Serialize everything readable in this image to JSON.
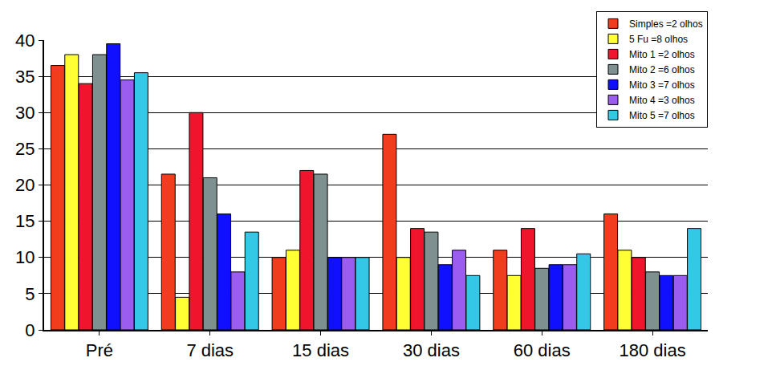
{
  "chart_data": {
    "type": "bar",
    "categories": [
      "Pré",
      "7 dias",
      "15 dias",
      "30 dias",
      "60 dias",
      "180 dias"
    ],
    "series": [
      {
        "name": "Simples =2 olhos",
        "color": "#F23C1E",
        "values": [
          36.5,
          21.5,
          10,
          27,
          11,
          16
        ]
      },
      {
        "name": "5 Fu =8 olhos",
        "color": "#FFFF33",
        "values": [
          38,
          4.5,
          11,
          10,
          7.5,
          11
        ]
      },
      {
        "name": "Mito 1 =2 olhos",
        "color": "#F0142D",
        "values": [
          34,
          30,
          22,
          14,
          14,
          10
        ]
      },
      {
        "name": "Mito 2 =6 olhos",
        "color": "#7F9090",
        "values": [
          38,
          21,
          21.5,
          13.5,
          8.5,
          8
        ]
      },
      {
        "name": "Mito 3 =7 olhos",
        "color": "#1010FF",
        "values": [
          39.5,
          16,
          10,
          9,
          9,
          7.5
        ]
      },
      {
        "name": "Mito 4 =3 olhos",
        "color": "#9B5CF0",
        "values": [
          34.5,
          8,
          10,
          11,
          9,
          7.5
        ]
      },
      {
        "name": "Mito 5 =7 olhos",
        "color": "#33C8E6",
        "values": [
          35.5,
          13.5,
          10,
          7.5,
          10.5,
          14
        ]
      }
    ],
    "ylim": [
      0,
      40
    ],
    "yticks": [
      0,
      5,
      10,
      15,
      20,
      25,
      30,
      35,
      40
    ],
    "grid": true,
    "legend": "top right"
  }
}
